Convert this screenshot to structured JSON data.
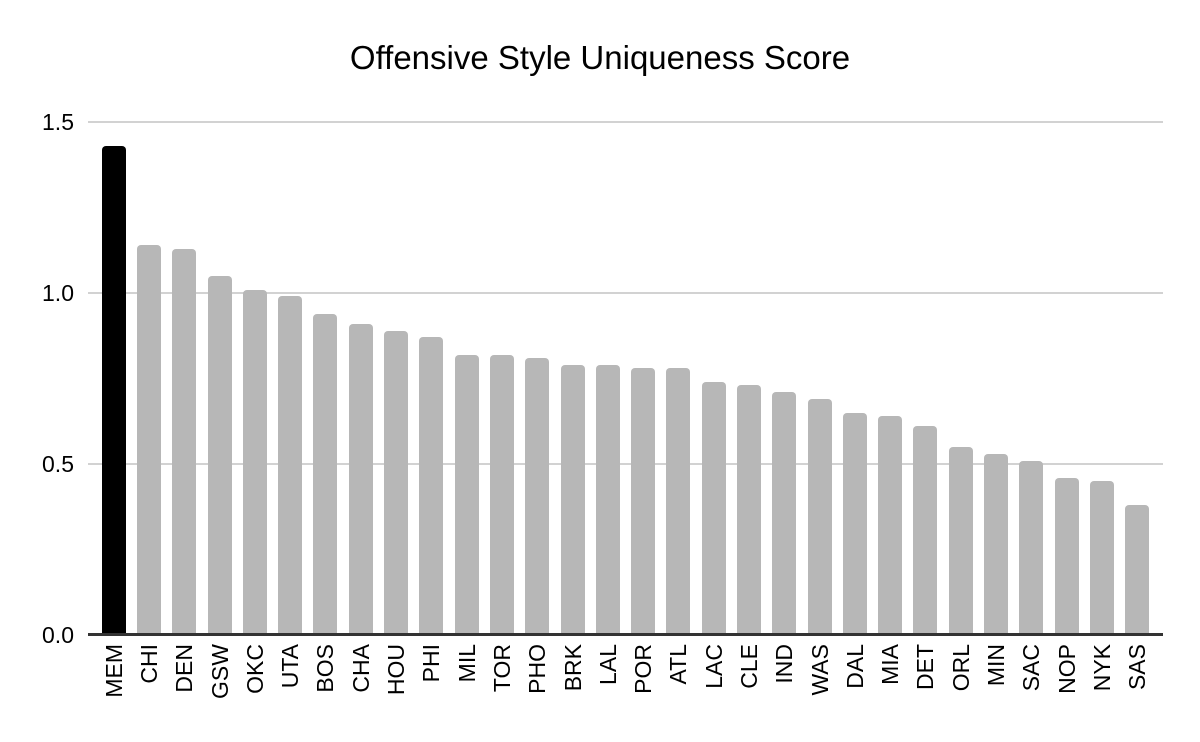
{
  "page": {
    "background": "#ffffff"
  },
  "chart_data": {
    "type": "bar",
    "title": "Offensive Style Uniqueness Score",
    "categories": [
      "MEM",
      "CHI",
      "DEN",
      "GSW",
      "OKC",
      "UTA",
      "BOS",
      "CHA",
      "HOU",
      "PHI",
      "MIL",
      "TOR",
      "PHO",
      "BRK",
      "LAL",
      "POR",
      "ATL",
      "LAC",
      "CLE",
      "IND",
      "WAS",
      "DAL",
      "MIA",
      "DET",
      "ORL",
      "MIN",
      "SAC",
      "NOP",
      "NYK",
      "SAS"
    ],
    "values": [
      1.43,
      1.14,
      1.13,
      1.05,
      1.01,
      0.99,
      0.94,
      0.91,
      0.89,
      0.87,
      0.82,
      0.82,
      0.81,
      0.79,
      0.79,
      0.78,
      0.78,
      0.74,
      0.73,
      0.71,
      0.69,
      0.65,
      0.64,
      0.61,
      0.55,
      0.53,
      0.51,
      0.46,
      0.45,
      0.38
    ],
    "highlight_index": 0,
    "xlabel": "",
    "ylabel": "",
    "ylim": [
      0,
      1.5
    ],
    "ytick_labels": [
      "0.0",
      "0.5",
      "1.0",
      "1.5"
    ],
    "grid": true,
    "legend_position": "none",
    "x_label_rotation": 90,
    "colors": {
      "bar_default": "#b7b7b7",
      "bar_highlight": "#000000",
      "gridline": "#d2d2d2",
      "axis_line": "#333333",
      "text": "#000000"
    }
  }
}
